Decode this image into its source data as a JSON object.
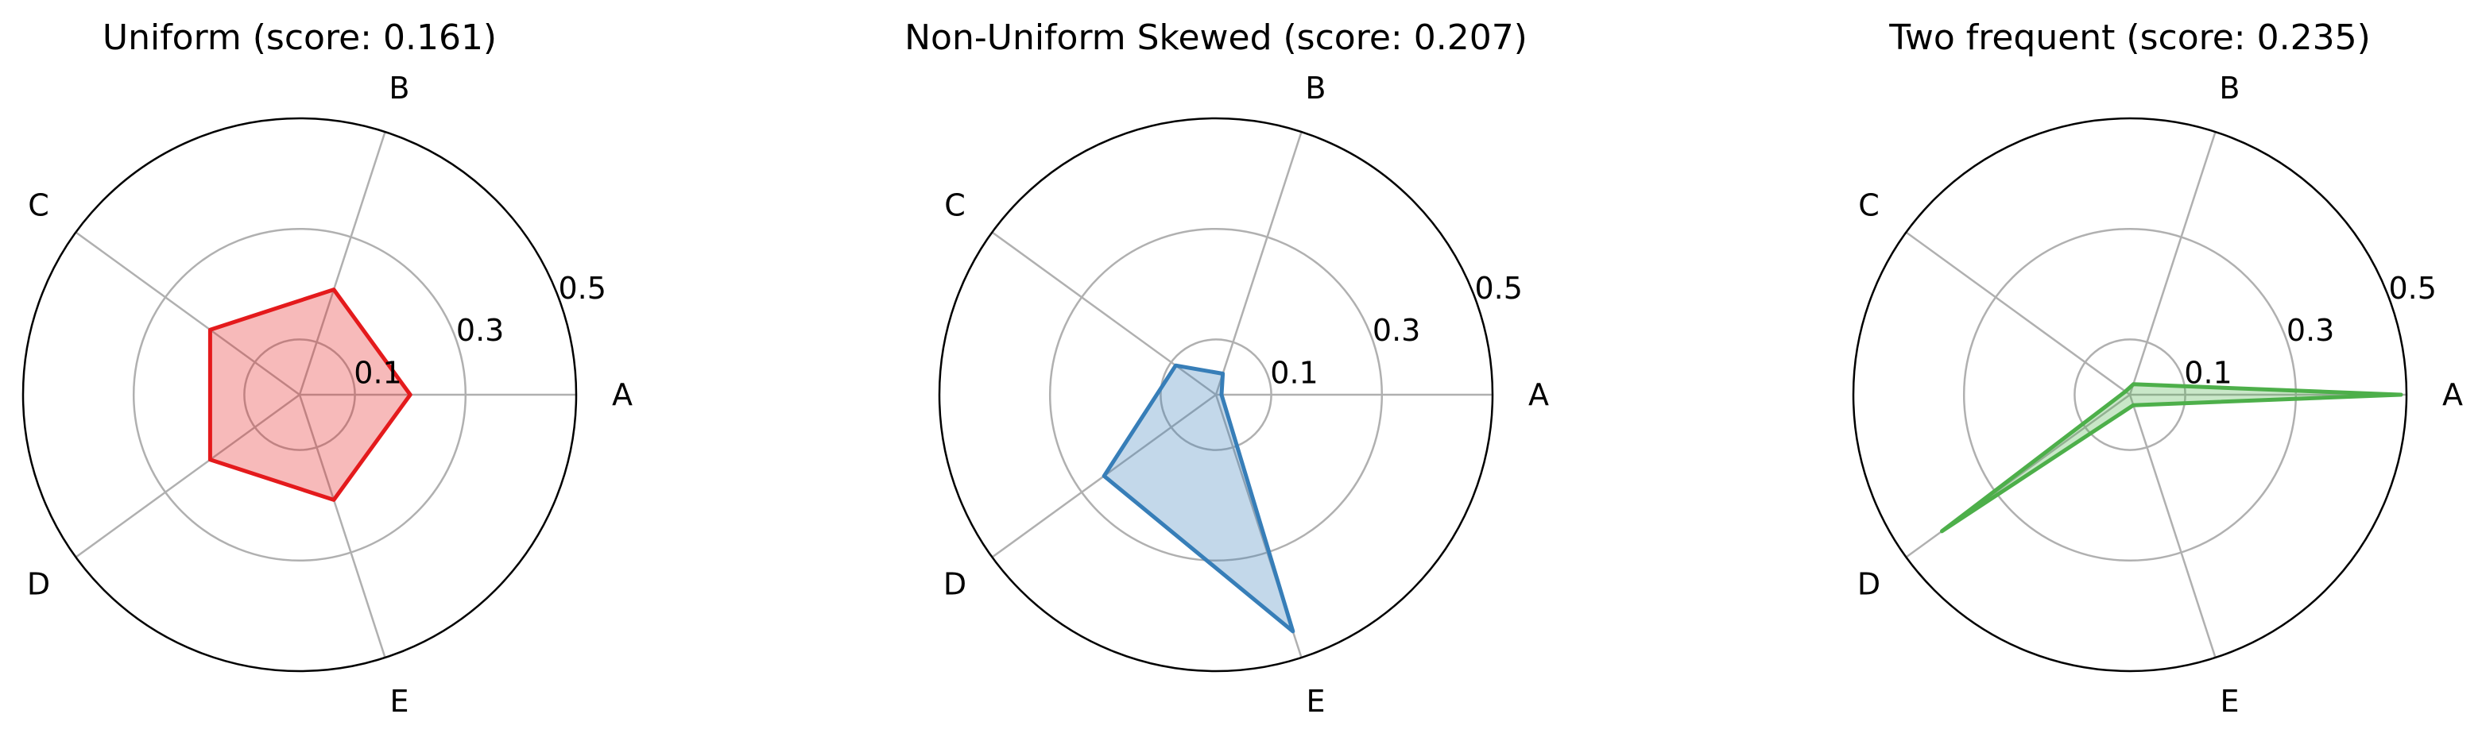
{
  "chart_data": [
    {
      "type": "radar",
      "title": "Uniform (score: 0.161)",
      "categories": [
        "A",
        "B",
        "C",
        "D",
        "E"
      ],
      "values": [
        0.2,
        0.2,
        0.2,
        0.2,
        0.2
      ],
      "rmax": 0.5,
      "rticks": [
        0.1,
        0.3,
        0.5
      ],
      "rtick_labels": [
        "0.1",
        "0.3",
        "0.5"
      ],
      "line_color": "#e41a1c",
      "fill_color": "#e41a1c"
    },
    {
      "type": "radar",
      "title": "Non-Uniform Skewed (score: 0.207)",
      "categories": [
        "A",
        "B",
        "C",
        "D",
        "E"
      ],
      "values": [
        0.01,
        0.04,
        0.09,
        0.25,
        0.45
      ],
      "rmax": 0.5,
      "rticks": [
        0.1,
        0.3,
        0.5
      ],
      "rtick_labels": [
        "0.1",
        "0.3",
        "0.5"
      ],
      "line_color": "#377eb8",
      "fill_color": "#377eb8"
    },
    {
      "type": "radar",
      "title": "Two frequent (score: 0.235)",
      "categories": [
        "A",
        "B",
        "C",
        "D",
        "E"
      ],
      "values": [
        0.49,
        0.02,
        0.01,
        0.42,
        0.02
      ],
      "rmax": 0.5,
      "rticks": [
        0.1,
        0.3,
        0.5
      ],
      "rtick_labels": [
        "0.1",
        "0.3",
        "0.5"
      ],
      "line_color": "#4daf4a",
      "fill_color": "#4daf4a"
    }
  ]
}
